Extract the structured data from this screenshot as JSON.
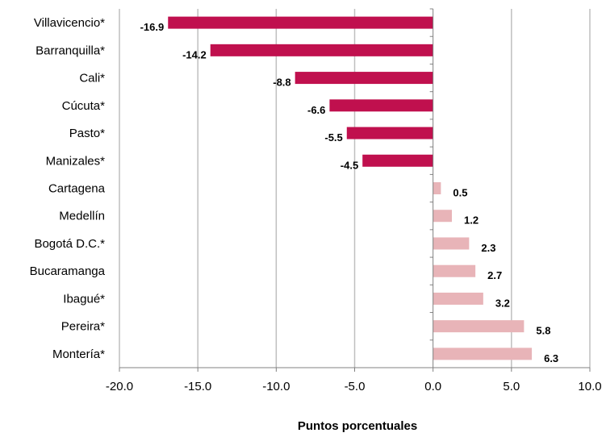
{
  "chart_data": {
    "type": "bar",
    "orientation": "horizontal",
    "categories": [
      "Villavicencio*",
      "Barranquilla*",
      "Cali*",
      "Cúcuta*",
      "Pasto*",
      "Manizales*",
      "Cartagena",
      "Medellín",
      "Bogotá D.C.*",
      "Bucaramanga",
      "Ibagué*",
      "Pereira*",
      "Montería*"
    ],
    "values": [
      -16.9,
      -14.2,
      -8.8,
      -6.6,
      -5.5,
      -4.5,
      0.5,
      1.2,
      2.3,
      2.7,
      3.2,
      5.8,
      6.3
    ],
    "value_labels": [
      "-16.9",
      "-14.2",
      "-8.8",
      "-6.6",
      "-5.5",
      "-4.5",
      "0.5",
      "1.2",
      "2.3",
      "2.7",
      "3.2",
      "5.8",
      "6.3"
    ],
    "xlabel": "Puntos porcentuales",
    "ylabel": "",
    "title": "",
    "xlim": [
      -20,
      10
    ],
    "x_ticks": [
      -20,
      -15,
      -10,
      -5,
      0,
      5,
      10
    ],
    "x_tick_labels": [
      "-20.0",
      "-15.0",
      "-10.0",
      "-5.0",
      "0.0",
      "5.0",
      "10.0"
    ],
    "grid": "vertical",
    "legend": "none",
    "colors": {
      "negative": "#C0104E",
      "positive": "#E8B4B8",
      "grid": "#BFBFBF",
      "axis": "#808080"
    }
  }
}
